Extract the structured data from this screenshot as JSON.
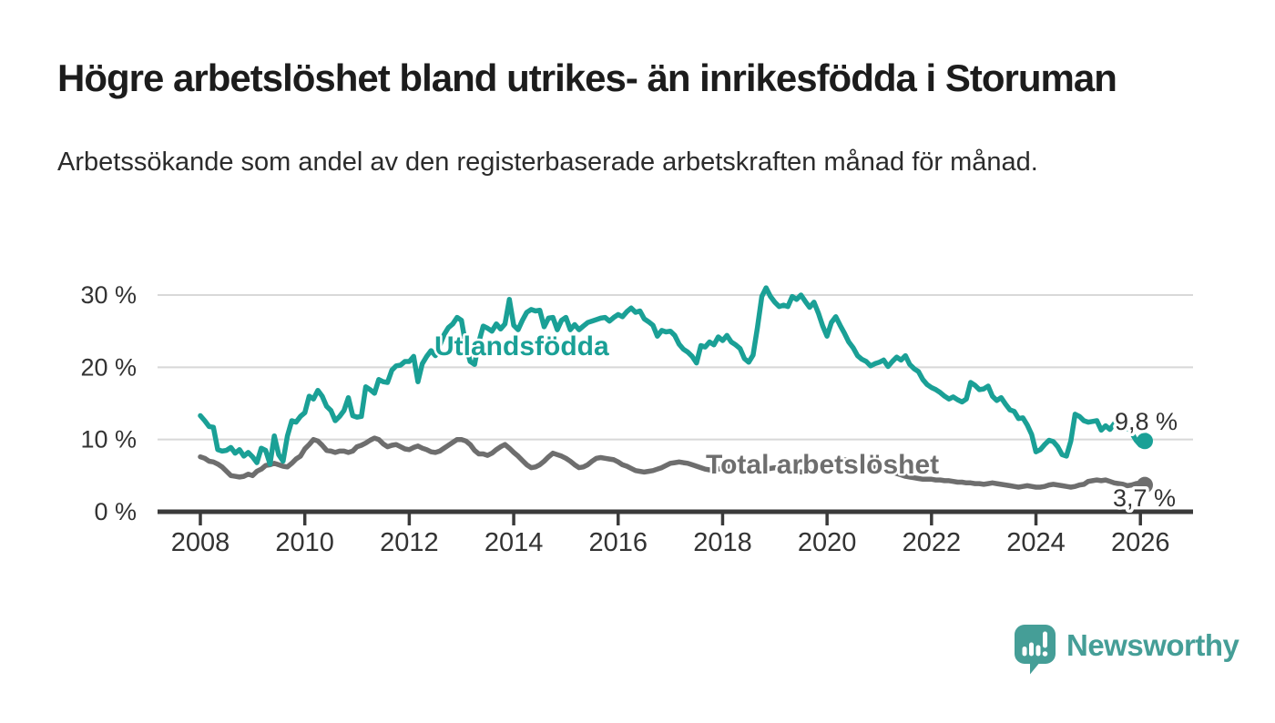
{
  "chart_data": {
    "type": "line",
    "title": "Högre arbetslöshet bland utrikes- än inrikesfödda i Storuman",
    "subtitle": "Arbetssökande som andel av den registerbaserade arbetskraften månad för månad.",
    "unit": "%",
    "frequency": "monthly",
    "x_start": "2008-01",
    "x_end": "2026-02",
    "grid": true,
    "legend": "inline-labels",
    "ylim": [
      0,
      32
    ],
    "x_axis": {
      "tick_years": [
        2008,
        2010,
        2012,
        2014,
        2016,
        2018,
        2020,
        2022,
        2024,
        2026
      ],
      "tick_labels": [
        "2008",
        "2010",
        "2012",
        "2014",
        "2016",
        "2018",
        "2020",
        "2022",
        "2024",
        "2026"
      ]
    },
    "y_axis": {
      "tick_values": [
        30,
        20,
        10,
        0
      ],
      "tick_labels": [
        "30 %",
        "20 %",
        "10 %",
        "0 %"
      ]
    },
    "colors": {
      "utlandsfodda": "#1aa096",
      "total": "#6e6e6e",
      "axis": "#3a3a3a",
      "grid": "#d8d8d8",
      "text": "#333333"
    },
    "series": [
      {
        "name": "Utlandsfödda",
        "color": "#1aa096",
        "end_label": "9,8 %",
        "last_value": 9.8,
        "values": [
          13.3,
          12.6,
          11.8,
          11.7,
          8.6,
          8.4,
          8.5,
          8.9,
          8.1,
          8.6,
          7.7,
          8.2,
          7.6,
          6.8,
          8.8,
          8.5,
          6.6,
          10.5,
          7.9,
          7.0,
          10.5,
          12.6,
          12.4,
          13.2,
          13.7,
          16.0,
          15.6,
          16.8,
          16.0,
          14.6,
          14.0,
          12.6,
          13.2,
          14.0,
          15.8,
          13.3,
          13.1,
          13.2,
          17.3,
          16.9,
          16.4,
          18.3,
          18.0,
          17.9,
          19.6,
          20.2,
          20.3,
          20.8,
          20.8,
          21.5,
          18.0,
          20.5,
          21.5,
          22.3,
          21.6,
          23.0,
          24.5,
          25.5,
          26.0,
          26.9,
          26.5,
          23.0,
          20.8,
          20.4,
          23.5,
          25.7,
          25.4,
          25.0,
          26.0,
          25.3,
          26.0,
          29.4,
          25.8,
          25.2,
          26.5,
          27.6,
          28.0,
          27.8,
          27.9,
          25.6,
          26.8,
          26.9,
          25.2,
          26.5,
          26.9,
          25.2,
          25.9,
          25.2,
          25.7,
          26.2,
          26.4,
          26.6,
          26.8,
          26.9,
          26.4,
          26.9,
          27.3,
          27.0,
          27.7,
          28.2,
          27.6,
          27.8,
          26.7,
          26.3,
          25.8,
          24.3,
          25.1,
          24.9,
          25.0,
          24.4,
          23.2,
          22.5,
          22.1,
          21.5,
          20.6,
          23.0,
          22.8,
          23.5,
          23.1,
          24.2,
          23.7,
          24.4,
          23.5,
          23.1,
          22.6,
          21.2,
          20.7,
          21.7,
          25.5,
          29.8,
          31.0,
          29.8,
          29.0,
          28.4,
          28.6,
          28.4,
          29.8,
          29.4,
          30.0,
          29.1,
          28.3,
          29.0,
          27.5,
          25.7,
          24.3,
          26.2,
          27.0,
          25.8,
          24.7,
          23.5,
          22.7,
          21.6,
          21.1,
          20.8,
          20.2,
          20.5,
          20.7,
          21.0,
          20.1,
          20.8,
          21.4,
          21.0,
          21.6,
          20.4,
          19.8,
          19.4,
          18.3,
          17.6,
          17.2,
          16.9,
          16.5,
          16.0,
          15.6,
          15.9,
          15.5,
          15.2,
          15.6,
          17.9,
          17.5,
          16.9,
          17.0,
          17.4,
          16.0,
          15.4,
          15.8,
          14.9,
          14.1,
          13.9,
          12.9,
          13.0,
          12.0,
          10.7,
          8.3,
          8.6,
          9.3,
          9.9,
          9.7,
          9.0,
          7.9,
          7.7,
          9.8,
          13.5,
          13.2,
          12.6,
          12.4,
          12.5,
          12.6,
          11.3,
          11.9,
          11.4,
          12.2,
          12.0,
          11.6,
          11.6,
          10.9,
          9.9,
          9.2,
          9.8
        ]
      },
      {
        "name": "Total arbetslöshet",
        "color": "#6e6e6e",
        "end_label": "3,7 %",
        "last_value": 3.7,
        "values": [
          7.6,
          7.4,
          7.0,
          6.9,
          6.6,
          6.2,
          5.6,
          5.0,
          4.9,
          4.8,
          4.9,
          5.2,
          5.0,
          5.6,
          5.9,
          6.4,
          6.5,
          6.7,
          6.5,
          6.3,
          6.2,
          6.7,
          7.3,
          7.7,
          8.7,
          9.3,
          10.0,
          9.8,
          9.2,
          8.5,
          8.4,
          8.2,
          8.4,
          8.4,
          8.2,
          8.4,
          9.0,
          9.2,
          9.5,
          9.9,
          10.2,
          10.0,
          9.4,
          9.0,
          9.2,
          9.3,
          9.0,
          8.7,
          8.6,
          8.9,
          9.1,
          8.8,
          8.6,
          8.3,
          8.2,
          8.4,
          8.8,
          9.2,
          9.6,
          10.0,
          10.0,
          9.8,
          9.3,
          8.5,
          8.0,
          8.0,
          7.8,
          8.1,
          8.6,
          9.0,
          9.3,
          8.8,
          8.2,
          7.7,
          7.1,
          6.5,
          6.1,
          6.2,
          6.5,
          7.0,
          7.6,
          8.1,
          7.9,
          7.7,
          7.4,
          7.0,
          6.5,
          6.1,
          6.2,
          6.5,
          7.0,
          7.4,
          7.5,
          7.4,
          7.3,
          7.2,
          6.9,
          6.5,
          6.3,
          6.0,
          5.7,
          5.6,
          5.5,
          5.6,
          5.7,
          5.9,
          6.1,
          6.4,
          6.7,
          6.8,
          6.9,
          6.8,
          6.7,
          6.5,
          6.3,
          6.1,
          5.9,
          5.8,
          5.7,
          5.9,
          6.1,
          6.3,
          6.2,
          6.0,
          5.8,
          5.6,
          5.5,
          5.6,
          5.7,
          5.8,
          5.9,
          6.0,
          6.1,
          6.0,
          5.9,
          5.8,
          5.7,
          5.6,
          5.5,
          5.5,
          5.6,
          5.7,
          5.8,
          5.9,
          6.0,
          6.1,
          6.5,
          7.0,
          7.2,
          7.1,
          6.9,
          6.7,
          6.5,
          6.3,
          6.2,
          6.1,
          6.0,
          5.9,
          5.7,
          5.5,
          5.3,
          5.1,
          4.9,
          4.8,
          4.7,
          4.6,
          4.5,
          4.5,
          4.5,
          4.4,
          4.4,
          4.3,
          4.3,
          4.2,
          4.1,
          4.1,
          4.0,
          4.0,
          3.9,
          3.9,
          3.8,
          3.9,
          4.0,
          3.9,
          3.8,
          3.7,
          3.6,
          3.5,
          3.4,
          3.5,
          3.6,
          3.5,
          3.4,
          3.4,
          3.5,
          3.7,
          3.8,
          3.7,
          3.6,
          3.5,
          3.4,
          3.5,
          3.7,
          3.8,
          4.2,
          4.3,
          4.4,
          4.3,
          4.4,
          4.2,
          4.0,
          3.9,
          3.8,
          3.6,
          3.7,
          3.9,
          4.0,
          3.7
        ]
      }
    ]
  },
  "footer": {
    "brand": "Newsworthy"
  }
}
